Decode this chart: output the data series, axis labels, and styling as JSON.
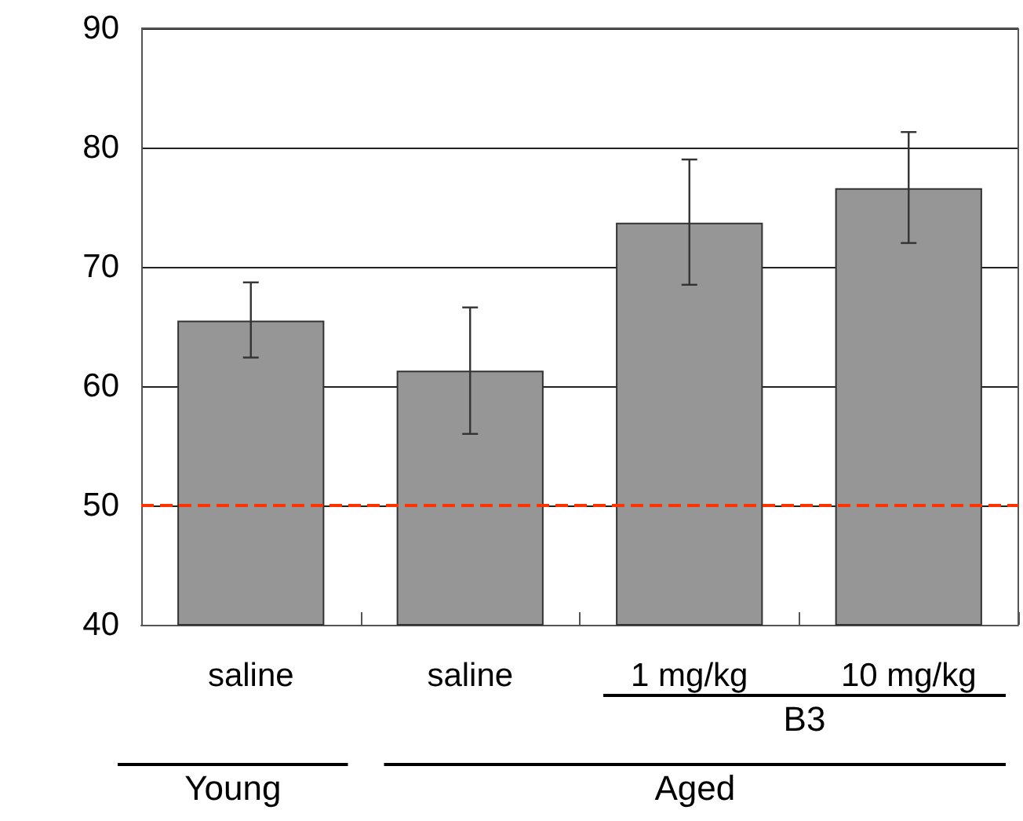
{
  "chart_data": {
    "type": "bar",
    "categories": [
      "saline",
      "saline",
      "1 mg/kg",
      "10 mg/kg"
    ],
    "values": [
      65.5,
      61.3,
      73.7,
      76.6
    ],
    "color": "#969696",
    "errors": [
      [
        62.4,
        68.7
      ],
      [
        56.0,
        66.6
      ],
      [
        68.5,
        79.0
      ],
      [
        72.0,
        81.3
      ]
    ],
    "ylim": [
      40,
      90
    ],
    "yticks": [
      40,
      50,
      60,
      70,
      80,
      90
    ],
    "grid": "y",
    "ref_lines": [
      {
        "axis": "y",
        "value": 50,
        "color": "#ff3300",
        "line_style": "dashed"
      }
    ],
    "annotations": [
      "B3",
      "Young",
      "Aged"
    ]
  }
}
